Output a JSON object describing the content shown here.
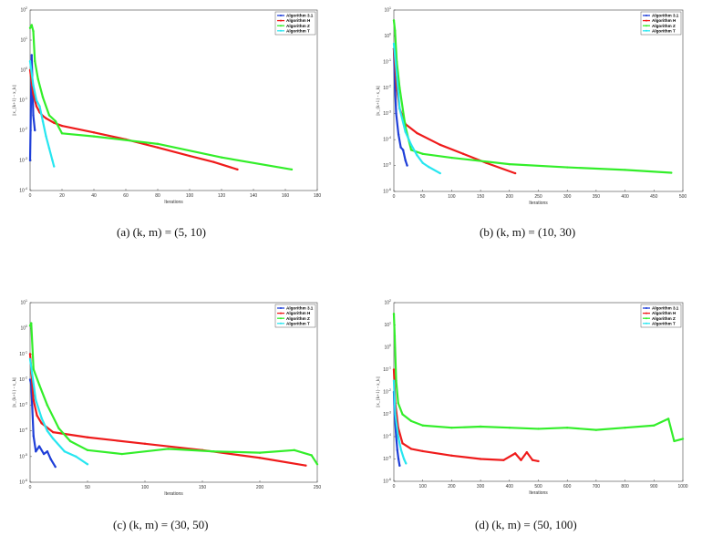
{
  "chart_data": [
    {
      "type": "line",
      "caption": "(a)  (k, m) = (5, 10)",
      "xlabel": "Iterations",
      "ylabel": "||x_{k+1} - x_k||",
      "xlim": [
        0,
        180
      ],
      "xticks": [
        "0",
        "20",
        "40",
        "60",
        "80",
        "100",
        "120",
        "140",
        "160",
        "180"
      ],
      "ylim_exp": [
        -4,
        2
      ],
      "yticks": [
        "10^-4",
        "10^-3",
        "10^-2",
        "10^-1",
        "10^0",
        "10^1",
        "10^2"
      ],
      "legend": [
        "Algorithm 3.1",
        "Algorithm H",
        "Algorithm Z",
        "Algorithm T"
      ],
      "series": [
        {
          "name": "Algorithm 3.1",
          "color": "#1f3fd8",
          "points": [
            [
              0,
              -3
            ],
            [
              1,
              0.5
            ],
            [
              2,
              -1.5
            ],
            [
              3,
              -2
            ]
          ]
        },
        {
          "name": "Algorithm H",
          "color": "#ef1b1b",
          "points": [
            [
              0,
              0
            ],
            [
              2,
              -0.8
            ],
            [
              4,
              -1.2
            ],
            [
              6,
              -1.4
            ],
            [
              8,
              -1.52
            ],
            [
              10,
              -1.6
            ],
            [
              15,
              -1.75
            ],
            [
              20,
              -1.85
            ],
            [
              40,
              -2.07
            ],
            [
              60,
              -2.3
            ],
            [
              80,
              -2.57
            ],
            [
              100,
              -2.85
            ],
            [
              115,
              -3.05
            ],
            [
              130,
              -3.3
            ]
          ]
        },
        {
          "name": "Algorithm Z",
          "color": "#33ee2a",
          "points": [
            [
              0,
              1.4
            ],
            [
              1,
              1.5
            ],
            [
              2,
              1.3
            ],
            [
              3,
              0.3
            ],
            [
              5,
              -0.3
            ],
            [
              8,
              -0.9
            ],
            [
              12,
              -1.5
            ],
            [
              16,
              -1.7
            ],
            [
              20,
              -2.1
            ],
            [
              40,
              -2.2
            ],
            [
              80,
              -2.45
            ],
            [
              120,
              -2.9
            ],
            [
              164,
              -3.3
            ]
          ]
        },
        {
          "name": "Algorithm T",
          "color": "#27e6f0",
          "points": [
            [
              0,
              0.3
            ],
            [
              2,
              -0.5
            ],
            [
              4,
              -1.0
            ],
            [
              6,
              -1.2
            ],
            [
              8,
              -1.7
            ],
            [
              10,
              -2.2
            ],
            [
              12,
              -2.6
            ],
            [
              14,
              -3.0
            ],
            [
              15,
              -3.2
            ]
          ]
        }
      ]
    },
    {
      "type": "line",
      "caption": "(b)  (k, m) = (10, 30)",
      "xlabel": "Iterations",
      "ylabel": "||x_{k+1} - x_k||",
      "xlim": [
        0,
        500
      ],
      "xticks": [
        "0",
        "50",
        "100",
        "150",
        "200",
        "250",
        "300",
        "350",
        "400",
        "450",
        "500"
      ],
      "ylim_exp": [
        -6,
        1
      ],
      "yticks": [
        "10^-6",
        "10^-5",
        "10^-4",
        "10^-3",
        "10^-2",
        "10^-1",
        "10^0",
        "10^1"
      ],
      "legend": [
        "Algorithm 3.1",
        "Algorithm H",
        "Algorithm Z",
        "Algorithm T"
      ],
      "series": [
        {
          "name": "Algorithm 3.1",
          "color": "#1f3fd8",
          "points": [
            [
              0,
              -0.5
            ],
            [
              2,
              -2
            ],
            [
              4,
              -3
            ],
            [
              8,
              -3.8
            ],
            [
              12,
              -4.3
            ],
            [
              16,
              -4.4
            ],
            [
              20,
              -4.8
            ],
            [
              23,
              -5
            ]
          ]
        },
        {
          "name": "Algorithm H",
          "color": "#ef1b1b",
          "points": [
            [
              0,
              -0.5
            ],
            [
              5,
              -2
            ],
            [
              10,
              -2.8
            ],
            [
              20,
              -3.4
            ],
            [
              40,
              -3.75
            ],
            [
              80,
              -4.2
            ],
            [
              120,
              -4.55
            ],
            [
              160,
              -4.9
            ],
            [
              210,
              -5.3
            ]
          ]
        },
        {
          "name": "Algorithm Z",
          "color": "#33ee2a",
          "points": [
            [
              0,
              0.6
            ],
            [
              2,
              0.2
            ],
            [
              5,
              -1
            ],
            [
              10,
              -2
            ],
            [
              20,
              -3.5
            ],
            [
              30,
              -4.4
            ],
            [
              50,
              -4.55
            ],
            [
              100,
              -4.7
            ],
            [
              200,
              -4.95
            ],
            [
              300,
              -5.07
            ],
            [
              400,
              -5.17
            ],
            [
              480,
              -5.28
            ]
          ]
        },
        {
          "name": "Algorithm T",
          "color": "#27e6f0",
          "points": [
            [
              0,
              -0.3
            ],
            [
              5,
              -1.5
            ],
            [
              10,
              -2.8
            ],
            [
              20,
              -3.7
            ],
            [
              30,
              -4.2
            ],
            [
              40,
              -4.6
            ],
            [
              50,
              -4.9
            ],
            [
              60,
              -5.05
            ],
            [
              80,
              -5.3
            ]
          ]
        }
      ]
    },
    {
      "type": "line",
      "caption": "(c)  (k, m) = (30, 50)",
      "xlabel": "Iterations",
      "ylabel": "||x_{k+1} - x_k||",
      "xlim": [
        0,
        250
      ],
      "xticks": [
        "0",
        "50",
        "100",
        "150",
        "200",
        "250"
      ],
      "ylim_exp": [
        -6,
        1
      ],
      "yticks": [
        "10^-6",
        "10^-5",
        "10^-4",
        "10^-3",
        "10^-2",
        "10^-1",
        "10^0",
        "10^1"
      ],
      "legend": [
        "Algorithm 3.1",
        "Algorithm H",
        "Algorithm Z",
        "Algorithm T"
      ],
      "series": [
        {
          "name": "Algorithm 3.1",
          "color": "#1f3fd8",
          "points": [
            [
              0,
              -2
            ],
            [
              1,
              -2.2
            ],
            [
              3,
              -4.2
            ],
            [
              5,
              -4.8
            ],
            [
              8,
              -4.6
            ],
            [
              12,
              -4.9
            ],
            [
              15,
              -4.8
            ],
            [
              18,
              -5.1
            ],
            [
              22,
              -5.4
            ]
          ]
        },
        {
          "name": "Algorithm H",
          "color": "#ef1b1b",
          "points": [
            [
              0,
              -1
            ],
            [
              3,
              -2.8
            ],
            [
              6,
              -3.4
            ],
            [
              10,
              -3.7
            ],
            [
              20,
              -4.05
            ],
            [
              50,
              -4.25
            ],
            [
              100,
              -4.5
            ],
            [
              150,
              -4.75
            ],
            [
              200,
              -5.05
            ],
            [
              240,
              -5.35
            ]
          ]
        },
        {
          "name": "Algorithm Z",
          "color": "#33ee2a",
          "points": [
            [
              0,
              0.1
            ],
            [
              1,
              0.2
            ],
            [
              3,
              -1.6
            ],
            [
              8,
              -2.2
            ],
            [
              15,
              -3.0
            ],
            [
              25,
              -3.9
            ],
            [
              35,
              -4.4
            ],
            [
              50,
              -4.75
            ],
            [
              80,
              -4.9
            ],
            [
              120,
              -4.7
            ],
            [
              160,
              -4.8
            ],
            [
              200,
              -4.85
            ],
            [
              230,
              -4.75
            ],
            [
              245,
              -4.95
            ],
            [
              250,
              -5.3
            ]
          ]
        },
        {
          "name": "Algorithm T",
          "color": "#27e6f0",
          "points": [
            [
              0,
              -1.2
            ],
            [
              5,
              -2.8
            ],
            [
              10,
              -3.5
            ],
            [
              15,
              -4.0
            ],
            [
              20,
              -4.3
            ],
            [
              30,
              -4.8
            ],
            [
              40,
              -5.0
            ],
            [
              50,
              -5.3
            ]
          ]
        }
      ]
    },
    {
      "type": "line",
      "caption": "(d)  (k, m) = (50, 100)",
      "xlabel": "Iterations",
      "ylabel": "||x_{k+1} - x_k||",
      "xlim": [
        0,
        1000
      ],
      "xticks": [
        "0",
        "100",
        "200",
        "300",
        "400",
        "500",
        "600",
        "700",
        "800",
        "900",
        "1000"
      ],
      "ylim_exp": [
        -6,
        2
      ],
      "yticks": [
        "10^-6",
        "10^-5",
        "10^-4",
        "10^-3",
        "10^-2",
        "10^-1",
        "10^0",
        "10^1",
        "10^2"
      ],
      "legend": [
        "Algorithm 3.1",
        "Algorithm H",
        "Algorithm Z",
        "Algorithm T"
      ],
      "series": [
        {
          "name": "Algorithm 3.1",
          "color": "#1f3fd8",
          "points": [
            [
              0,
              -2
            ],
            [
              3,
              -3
            ],
            [
              8,
              -4
            ],
            [
              12,
              -4.6
            ],
            [
              16,
              -5
            ],
            [
              20,
              -5.3
            ]
          ]
        },
        {
          "name": "Algorithm H",
          "color": "#ef1b1b",
          "points": [
            [
              0,
              -1
            ],
            [
              5,
              -2.5
            ],
            [
              15,
              -3.6
            ],
            [
              30,
              -4.3
            ],
            [
              60,
              -4.55
            ],
            [
              100,
              -4.65
            ],
            [
              200,
              -4.85
            ],
            [
              300,
              -5.0
            ],
            [
              380,
              -5.05
            ],
            [
              420,
              -4.75
            ],
            [
              440,
              -5.05
            ],
            [
              460,
              -4.7
            ],
            [
              480,
              -5.05
            ],
            [
              500,
              -5.1
            ]
          ]
        },
        {
          "name": "Algorithm Z",
          "color": "#33ee2a",
          "points": [
            [
              0,
              1.5
            ],
            [
              3,
              0.5
            ],
            [
              8,
              -1.5
            ],
            [
              15,
              -2.5
            ],
            [
              30,
              -3.0
            ],
            [
              60,
              -3.3
            ],
            [
              100,
              -3.5
            ],
            [
              200,
              -3.6
            ],
            [
              300,
              -3.55
            ],
            [
              400,
              -3.6
            ],
            [
              500,
              -3.65
            ],
            [
              600,
              -3.6
            ],
            [
              700,
              -3.7
            ],
            [
              800,
              -3.6
            ],
            [
              900,
              -3.5
            ],
            [
              950,
              -3.2
            ],
            [
              970,
              -4.2
            ],
            [
              1000,
              -4.1
            ]
          ]
        },
        {
          "name": "Algorithm T",
          "color": "#27e6f0",
          "points": [
            [
              0,
              -1.5
            ],
            [
              5,
              -3
            ],
            [
              15,
              -4.0
            ],
            [
              25,
              -4.6
            ],
            [
              35,
              -5.0
            ],
            [
              42,
              -5.2
            ]
          ]
        }
      ]
    }
  ]
}
